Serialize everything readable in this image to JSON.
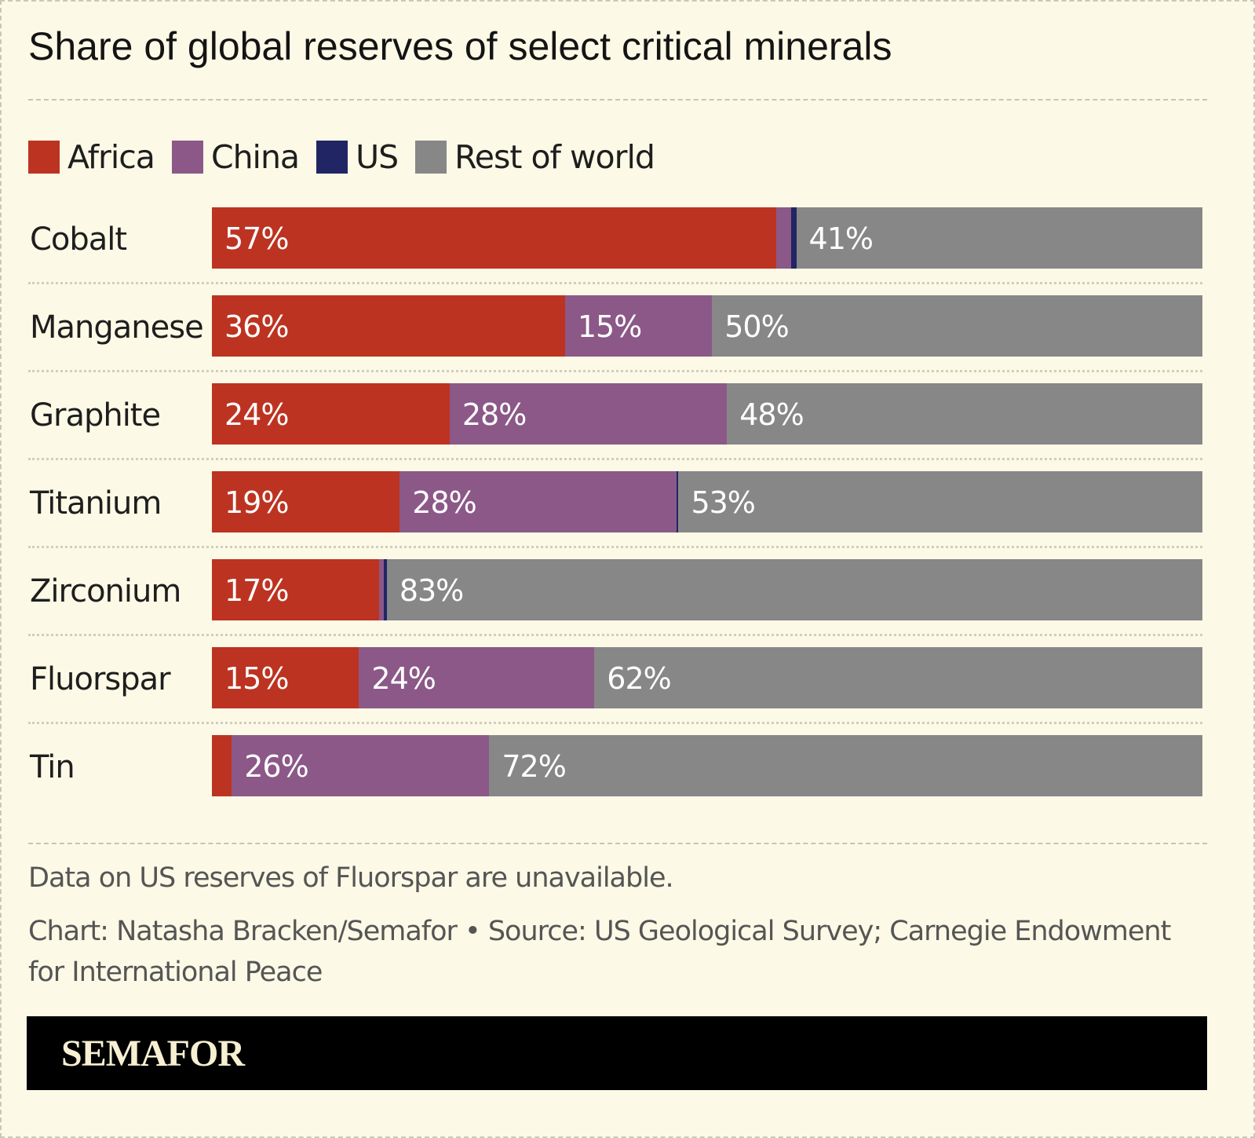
{
  "chart_data": {
    "type": "bar",
    "orientation": "horizontal",
    "stacked": true,
    "title": "Share of global reserves of select critical minerals",
    "legend_placement": "top-left",
    "legend": [
      "Africa",
      "China",
      "US",
      "Rest of world"
    ],
    "colors": {
      "Africa": "#bd3321",
      "China": "#8b5888",
      "US": "#212563",
      "Rest of world": "#878787"
    },
    "categories": [
      "Cobalt",
      "Manganese",
      "Graphite",
      "Titanium",
      "Zirconium",
      "Fluorspar",
      "Tin"
    ],
    "series": [
      {
        "name": "Africa",
        "values": [
          57,
          36,
          24,
          19,
          17,
          15,
          2
        ],
        "labels": [
          "57%",
          "36%",
          "24%",
          "19%",
          "17%",
          "15%",
          null
        ]
      },
      {
        "name": "China",
        "values": [
          1.5,
          15,
          28,
          28,
          0.5,
          24,
          26
        ],
        "labels": [
          null,
          "15%",
          "28%",
          "28%",
          null,
          "24%",
          "26%"
        ]
      },
      {
        "name": "US",
        "values": [
          0.5,
          0,
          0,
          0.2,
          0.3,
          null,
          0
        ],
        "labels": [
          null,
          null,
          null,
          null,
          null,
          null,
          null
        ]
      },
      {
        "name": "Rest of world",
        "values": [
          41,
          50,
          48,
          53,
          83,
          62,
          72
        ],
        "labels": [
          "41%",
          "50%",
          "48%",
          "53%",
          "83%",
          "62%",
          "72%"
        ]
      }
    ],
    "xlim": [
      0,
      100
    ],
    "unit": "%"
  },
  "footnote": "Data on US reserves of Fluorspar are unavailable.",
  "credit": "Chart: Natasha Bracken/Semafor • Source: US Geological Survey; Carnegie Endowment for International Peace",
  "brand": "SEMAFOR"
}
